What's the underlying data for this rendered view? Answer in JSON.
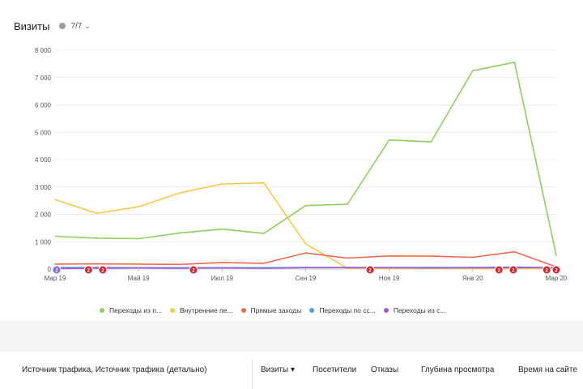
{
  "header": {
    "title": "Визиты",
    "counter": "7/7"
  },
  "chart_data": {
    "type": "line",
    "ylim": [
      0,
      8000
    ],
    "yticks": [
      "0",
      "1 000",
      "2 000",
      "3 000",
      "4 000",
      "5 000",
      "6 000",
      "7 000",
      "8 000"
    ],
    "x_tick_labels": [
      "Мар 19",
      "Май 19",
      "Июл 19",
      "Сен 19",
      "Ноя 19",
      "Янв 20",
      "Мар 20"
    ],
    "x": [
      "Мар 19",
      "Апр 19",
      "Май 19",
      "Июн 19",
      "Июл 19",
      "Авг 19",
      "Сен 19",
      "Окт 19",
      "Ноя 19",
      "Дек 19",
      "Янв 20",
      "Фев 20",
      "Мар 20"
    ],
    "series": [
      {
        "name": "Переходы из п...",
        "color": "#8fcf5b",
        "values": [
          1200,
          1130,
          1110,
          1320,
          1460,
          1300,
          2320,
          2370,
          4720,
          4650,
          7250,
          7560,
          500
        ]
      },
      {
        "name": "Внутренние пе...",
        "color": "#f7c948",
        "values": [
          2540,
          2040,
          2280,
          2790,
          3110,
          3150,
          920,
          30,
          20,
          20,
          20,
          20,
          10
        ]
      },
      {
        "name": "Прямые заходы",
        "color": "#f1684e",
        "values": [
          180,
          190,
          180,
          170,
          240,
          210,
          590,
          400,
          480,
          470,
          430,
          630,
          80
        ]
      },
      {
        "name": "Переходы по сс...",
        "color": "#4aa3df",
        "values": [
          60,
          60,
          50,
          50,
          50,
          50,
          60,
          60,
          60,
          60,
          60,
          70,
          40
        ]
      },
      {
        "name": "Переходы из с...",
        "color": "#a05ad1",
        "values": [
          20,
          30,
          40,
          30,
          40,
          30,
          50,
          50,
          50,
          40,
          50,
          50,
          60
        ]
      }
    ],
    "annotations": [
      {
        "x": 0,
        "label": "2"
      },
      {
        "x": 3.5,
        "label": "2"
      },
      {
        "x": 5,
        "label": "2"
      },
      {
        "x": 14.5,
        "label": "2"
      },
      {
        "x": 33,
        "label": "2"
      },
      {
        "x": 46.5,
        "label": "2"
      },
      {
        "x": 48,
        "label": "2"
      },
      {
        "x": 51.5,
        "label": "2"
      },
      {
        "x": 52.5,
        "label": "2"
      }
    ],
    "grid": true,
    "legend": "bottom"
  },
  "table": {
    "source_header": "Источник трафика, Источник трафика (детально)",
    "columns": [
      "Визиты ▾",
      "Посетители",
      "Отказы",
      "Глубина просмотра",
      "Время на сайте"
    ]
  }
}
